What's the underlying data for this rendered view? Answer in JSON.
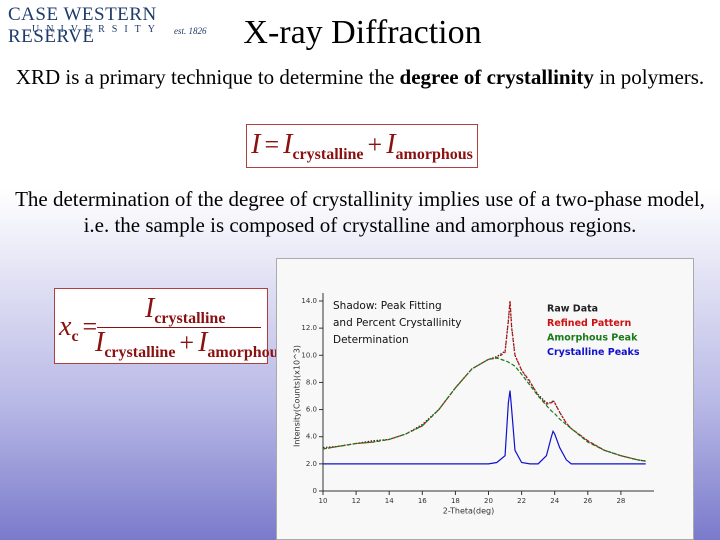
{
  "logo": {
    "name": "CASE WESTERN RESERVE",
    "sub": "UNIVERSITY",
    "est": "est. 1826"
  },
  "title": "X-ray Diffraction",
  "paragraph1": {
    "before": "XRD is a primary technique to determine the ",
    "bold": "degree of crystallinity",
    "after": " in polymers."
  },
  "equation1": {
    "lhs": "I",
    "eq": "=",
    "a": "I",
    "a_sub": "crystalline",
    "plus": "+",
    "b": "I",
    "b_sub": "amorphous"
  },
  "paragraph2": "The determination of the degree of crystallinity implies use of a two-phase model, i.e. the sample is composed of crystalline and amorphous regions.",
  "equation2": {
    "x": "x",
    "x_sub": "c",
    "eq": "=",
    "num": "I",
    "num_sub": "crystalline",
    "den_a": "I",
    "den_a_sub": "crystalline",
    "plus": "+",
    "den_b": "I",
    "den_b_sub": "amorphous"
  },
  "chart_data": {
    "type": "line",
    "annotation": [
      "Shadow:  Peak Fitting",
      "and Percent Crystallinity",
      "Determination"
    ],
    "x_label": "2-Theta(deg)",
    "y_label": "Intensity(Counts)(x10^3)",
    "x": [
      10,
      11,
      12,
      13,
      14,
      15,
      16,
      17,
      18,
      19,
      20,
      20.5,
      21,
      21.2,
      21.3,
      21.4,
      21.6,
      22,
      22.5,
      23,
      23.5,
      23.8,
      23.9,
      24,
      24.3,
      24.7,
      25,
      26,
      27,
      28,
      29,
      29.5
    ],
    "series": [
      {
        "name": "Raw Data",
        "color": "#222222",
        "values": [
          3.2,
          3.3,
          3.5,
          3.7,
          3.8,
          4.2,
          4.9,
          6.0,
          7.6,
          9.0,
          9.7,
          9.9,
          10.3,
          12.6,
          14.0,
          12.1,
          10.0,
          8.9,
          8.0,
          7.1,
          6.5,
          6.5,
          6.7,
          6.5,
          5.8,
          5.0,
          4.6,
          3.7,
          3.0,
          2.6,
          2.3,
          2.2
        ]
      },
      {
        "name": "Refined Pattern",
        "color": "#cc1111",
        "values": [
          3.1,
          3.3,
          3.5,
          3.6,
          3.8,
          4.2,
          4.8,
          6.0,
          7.6,
          9.0,
          9.7,
          9.8,
          10.2,
          12.5,
          14.0,
          12.0,
          10.0,
          8.9,
          8.1,
          7.0,
          6.4,
          6.5,
          6.6,
          6.5,
          5.8,
          5.0,
          4.6,
          3.7,
          3.0,
          2.6,
          2.3,
          2.2
        ]
      },
      {
        "name": "Amorphous Peak",
        "color": "#1a7a1a",
        "values": [
          3.1,
          3.3,
          3.5,
          3.6,
          3.8,
          4.2,
          4.8,
          6.0,
          7.6,
          9.0,
          9.7,
          9.8,
          9.6,
          9.5,
          9.4,
          9.35,
          9.2,
          8.6,
          7.8,
          7.0,
          6.3,
          5.9,
          5.8,
          5.7,
          5.3,
          4.9,
          4.6,
          3.6,
          3.0,
          2.6,
          2.3,
          2.2
        ]
      },
      {
        "name": "Crystalline Peaks",
        "color": "#1111cc",
        "values": [
          2.0,
          2.0,
          2.0,
          2.0,
          2.0,
          2.0,
          2.0,
          2.0,
          2.0,
          2.0,
          2.0,
          2.1,
          2.6,
          6.5,
          7.4,
          6.0,
          3.0,
          2.1,
          2.0,
          2.0,
          2.6,
          4.0,
          4.4,
          4.2,
          3.2,
          2.3,
          2.0,
          2.0,
          2.0,
          2.0,
          2.0,
          2.0
        ]
      }
    ],
    "xlim": [
      10,
      30
    ],
    "ylim": [
      0,
      14
    ],
    "xticks": [
      10,
      12,
      14,
      16,
      18,
      20,
      22,
      24,
      26,
      28
    ],
    "yticks": [
      0,
      {
        "value": 2,
        "label": "2.0"
      },
      {
        "value": 4,
        "label": "4.0"
      },
      {
        "value": 6,
        "label": "6.0"
      },
      {
        "value": 8,
        "label": "8.0"
      },
      {
        "value": 10,
        "label": "10.0"
      },
      {
        "value": 12,
        "label": "12.0"
      },
      {
        "value": 14,
        "label": "14.0"
      }
    ]
  }
}
